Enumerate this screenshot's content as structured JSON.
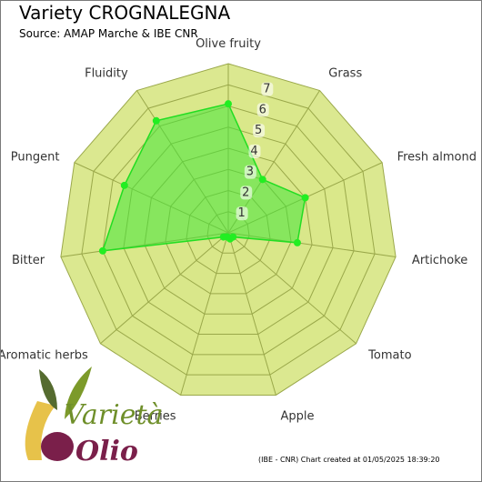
{
  "title": "Variety CROGNALEGNA",
  "subtitle": "Source: AMAP Marche & IBE CNR",
  "footer": "(IBE - CNR) Chart created at 01/05/2025 18:39:20",
  "logo": {
    "word1": "Varietà",
    "word2": "Olio"
  },
  "colors": {
    "band_fill": "#d9e78a",
    "band_stroke": "#9aa84a",
    "series_fill": "#44e63a",
    "series_stroke": "#22dd22",
    "marker": "#22ee22",
    "logo_green": "#6f8f2a",
    "logo_yellow": "#e7c24a",
    "logo_purple": "#7a1f4a"
  },
  "chart_data": {
    "type": "radar",
    "axes": [
      "Olive fruity",
      "Grass",
      "Fresh almond",
      "Artichoke",
      "Tomato",
      "Apple",
      "Berries",
      "Aromatic herbs",
      "Bitter",
      "Pungent",
      "Fluidity"
    ],
    "tick_labels": [
      "1",
      "2",
      "3",
      "4",
      "5",
      "6",
      "7"
    ],
    "range": [
      0,
      8
    ],
    "series": [
      {
        "values": [
          6.1,
          3.0,
          4.0,
          3.3,
          0.3,
          0.3,
          0.2,
          0.3,
          6.0,
          5.4,
          6.3
        ]
      }
    ]
  }
}
